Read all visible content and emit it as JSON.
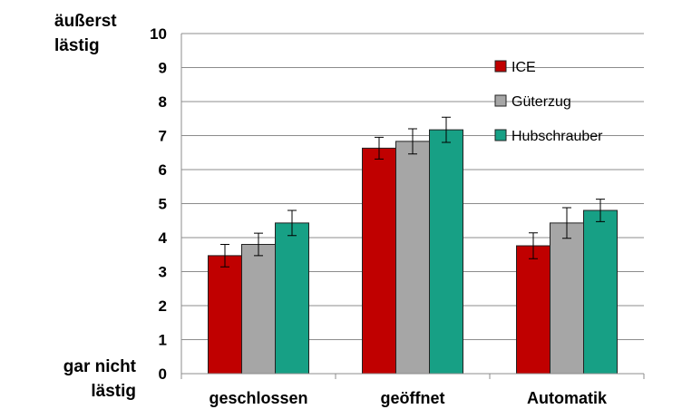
{
  "chart_data": {
    "type": "bar",
    "categories": [
      "geschlossen",
      "geöffnet",
      "Automatik"
    ],
    "series": [
      {
        "name": "ICE",
        "color": "#c00000",
        "values": [
          3.47,
          6.63,
          3.76
        ],
        "errors": [
          0.33,
          0.32,
          0.38
        ]
      },
      {
        "name": "Güterzug",
        "color": "#a6a6a6",
        "values": [
          3.8,
          6.83,
          4.43
        ],
        "errors": [
          0.33,
          0.37,
          0.45
        ]
      },
      {
        "name": "Hubschrauber",
        "color": "#17a085",
        "values": [
          4.43,
          7.17,
          4.8
        ],
        "errors": [
          0.37,
          0.37,
          0.33
        ]
      }
    ],
    "ylim": [
      0,
      10
    ],
    "yticks": [
      "0",
      "1",
      "2",
      "3",
      "4",
      "5",
      "6",
      "7",
      "8",
      "9",
      "10"
    ],
    "ylabel_top": [
      "äußerst",
      "lästig"
    ],
    "ylabel_bottom": [
      "gar nicht",
      "lästig"
    ],
    "grid": true,
    "legend_position": "top-right"
  }
}
